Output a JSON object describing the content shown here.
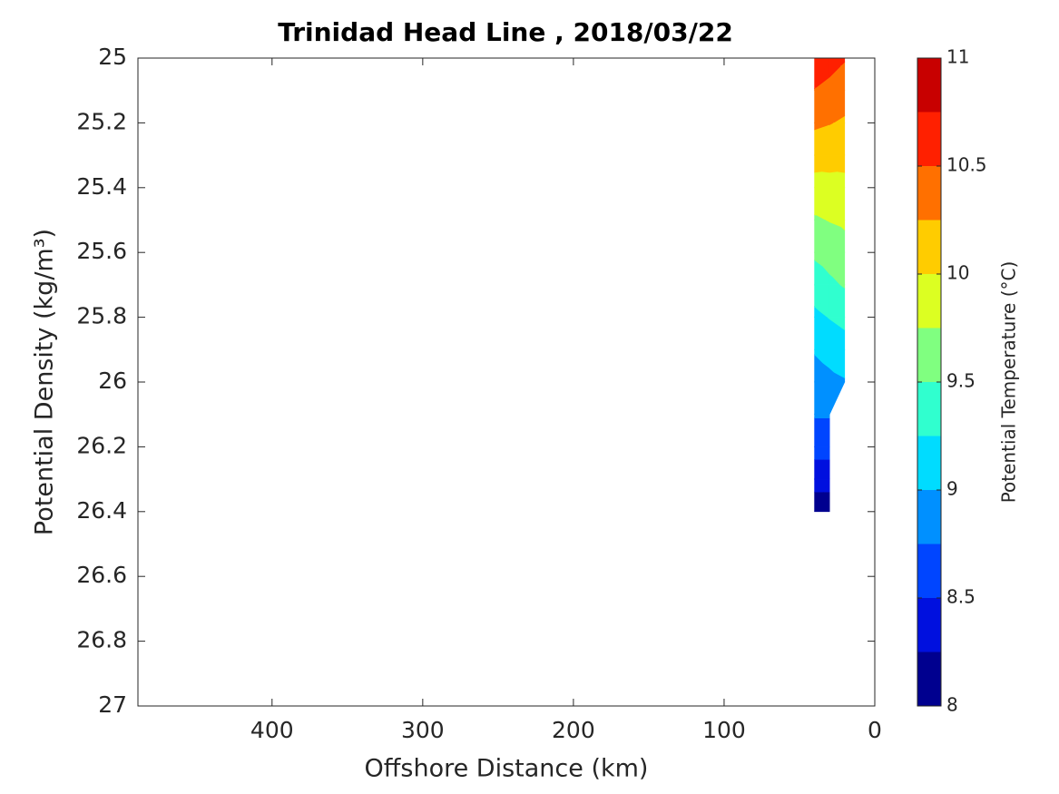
{
  "chart_data": {
    "type": "contourf",
    "title": "Trinidad Head Line , 2018/03/22",
    "x_label": "Offshore Distance (km)",
    "y_label": "Potential Density (kg/m³)",
    "colorbar_label": "Potential Temperature (°C)",
    "x": [
      40,
      30,
      20
    ],
    "y": [
      25.0,
      25.1,
      25.2,
      25.3,
      25.4,
      25.5,
      25.6,
      25.7,
      25.8,
      25.9,
      26.0,
      26.1,
      26.2,
      26.3,
      26.4
    ],
    "z": [
      [
        10.68,
        10.6,
        10.52
      ],
      [
        10.49,
        10.43,
        10.36
      ],
      [
        10.29,
        10.26,
        10.22
      ],
      [
        10.1,
        10.09,
        10.08
      ],
      [
        9.91,
        9.92,
        9.93
      ],
      [
        9.72,
        9.76,
        9.79
      ],
      [
        9.54,
        9.6,
        9.66
      ],
      [
        9.37,
        9.45,
        9.52
      ],
      [
        9.19,
        9.26,
        9.32
      ],
      [
        9.02,
        9.08,
        9.14
      ],
      [
        8.89,
        8.94,
        8.98
      ],
      [
        8.77,
        8.77,
        null
      ],
      [
        8.59,
        8.59,
        null
      ],
      [
        8.36,
        8.36,
        null
      ],
      [
        8.08,
        8.08,
        null
      ]
    ],
    "levels": [
      8,
      8.25,
      8.5,
      8.75,
      9,
      9.25,
      9.5,
      9.75,
      10,
      10.25,
      10.5,
      10.75,
      11
    ],
    "colors": [
      "#00008f",
      "#0010df",
      "#0045ff",
      "#0090ff",
      "#00dcff",
      "#30ffcf",
      "#80ff80",
      "#dcff22",
      "#ffcc00",
      "#ff7000",
      "#ff2000",
      "#c80000"
    ],
    "clim": [
      8,
      11
    ],
    "colorbar_ticks": [
      8,
      8.5,
      9,
      9.5,
      10,
      10.5,
      11
    ],
    "xlim": [
      489,
      0
    ],
    "xticks": [
      0,
      100,
      200,
      300,
      400
    ],
    "ylim": [
      27,
      25
    ],
    "yticks": [
      25,
      25.2,
      25.4,
      25.6,
      25.8,
      26,
      26.2,
      26.4,
      26.6,
      26.8,
      27
    ]
  }
}
